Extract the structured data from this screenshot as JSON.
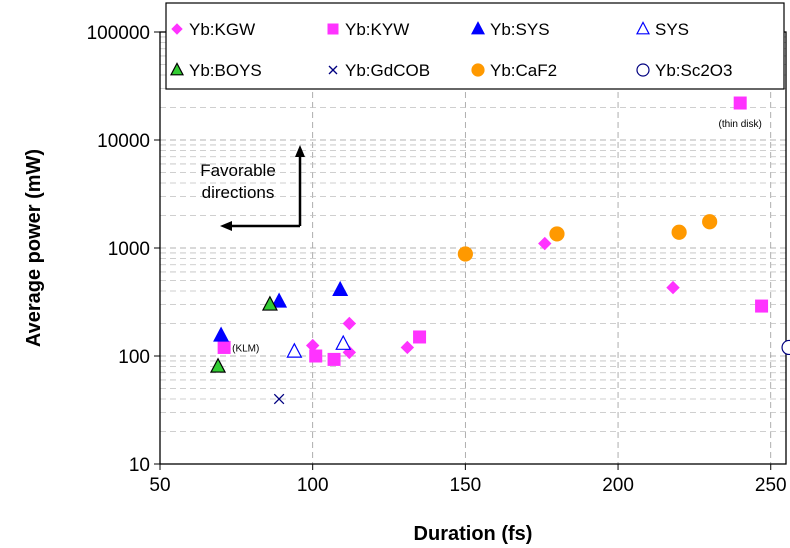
{
  "chart_data": {
    "type": "scatter",
    "xlabel": "Duration (fs)",
    "ylabel": "Average power (mW)",
    "xlim": [
      50,
      255
    ],
    "ylim": [
      10,
      100000
    ],
    "y_scale": "log",
    "x_ticks": [
      50,
      100,
      150,
      200,
      250
    ],
    "y_ticks": [
      10,
      100,
      1000,
      10000,
      100000
    ],
    "grid": "dashed",
    "legend_position": "top-right",
    "annotations": {
      "thin_disk": "(thin disk)",
      "klm": "(KLM)",
      "favorable": [
        "Favorable",
        "directions"
      ]
    },
    "series": [
      {
        "name": "Yb:KGW",
        "marker": "diamond",
        "color": "#ff33ff",
        "filled": true,
        "points": [
          [
            100,
            125
          ],
          [
            112,
            200
          ],
          [
            112,
            108
          ],
          [
            131,
            120
          ],
          [
            176,
            1100
          ],
          [
            218,
            430
          ]
        ]
      },
      {
        "name": "Yb:KYW",
        "marker": "square",
        "color": "#ff33ff",
        "filled": true,
        "points": [
          [
            71,
            120
          ],
          [
            101,
            100
          ],
          [
            107,
            93
          ],
          [
            135,
            150
          ],
          [
            240,
            22000
          ],
          [
            247,
            290
          ]
        ]
      },
      {
        "name": "Yb:SYS",
        "marker": "triangle",
        "color": "#0000ff",
        "filled": true,
        "points": [
          [
            70,
            155
          ],
          [
            89,
            320
          ],
          [
            109,
            410
          ]
        ]
      },
      {
        "name": "SYS",
        "marker": "triangle",
        "color": "#0000ff",
        "filled": false,
        "points": [
          [
            94,
            110
          ],
          [
            110,
            130
          ]
        ]
      },
      {
        "name": "Yb:BOYS",
        "marker": "triangle",
        "color": "#33cc33",
        "filled": true,
        "stroke": "#000000",
        "points": [
          [
            69,
            80
          ],
          [
            86,
            300
          ]
        ]
      },
      {
        "name": "Yb:GdCOB",
        "marker": "x",
        "color": "#000080",
        "filled": false,
        "points": [
          [
            89,
            40
          ]
        ]
      },
      {
        "name": "Yb:CaF2",
        "marker": "circle",
        "color": "#ff9900",
        "filled": true,
        "points": [
          [
            150,
            880
          ],
          [
            180,
            1350
          ],
          [
            220,
            1400
          ],
          [
            230,
            1750
          ]
        ]
      },
      {
        "name": "Yb:Sc2O3",
        "marker": "circle",
        "color": "#000080",
        "filled": false,
        "points": [
          [
            256,
            120
          ]
        ]
      }
    ]
  }
}
